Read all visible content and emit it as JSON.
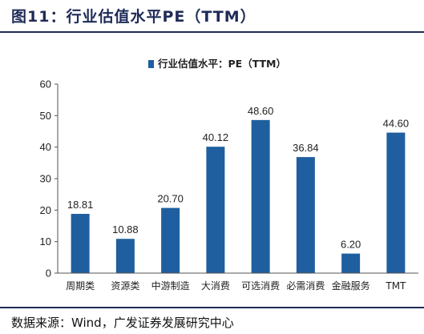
{
  "figure": {
    "title": "图11：行业估值水平PE（TTM）",
    "source": "数据来源：Wind，广发证券发展研究中心"
  },
  "colors": {
    "bar": "#1f5f9f",
    "heading": "#1f2b57"
  },
  "chart_data": {
    "type": "bar",
    "categories": [
      "周期类",
      "资源类",
      "中游制造",
      "大消费",
      "可选消费",
      "必需消费",
      "金融服务",
      "TMT"
    ],
    "series": [
      {
        "name": "行业估值水平：PE（TTM）",
        "values": [
          18.81,
          10.88,
          20.7,
          40.12,
          48.6,
          36.84,
          6.2,
          44.6
        ]
      }
    ],
    "data_labels": [
      "18.81",
      "10.88",
      "20.70",
      "40.12",
      "48.60",
      "36.84",
      "6.20",
      "44.60"
    ],
    "ylim": [
      0,
      60
    ],
    "yticks": [
      0,
      10,
      20,
      30,
      40,
      50,
      60
    ],
    "grid": false,
    "legend": "top-center"
  }
}
